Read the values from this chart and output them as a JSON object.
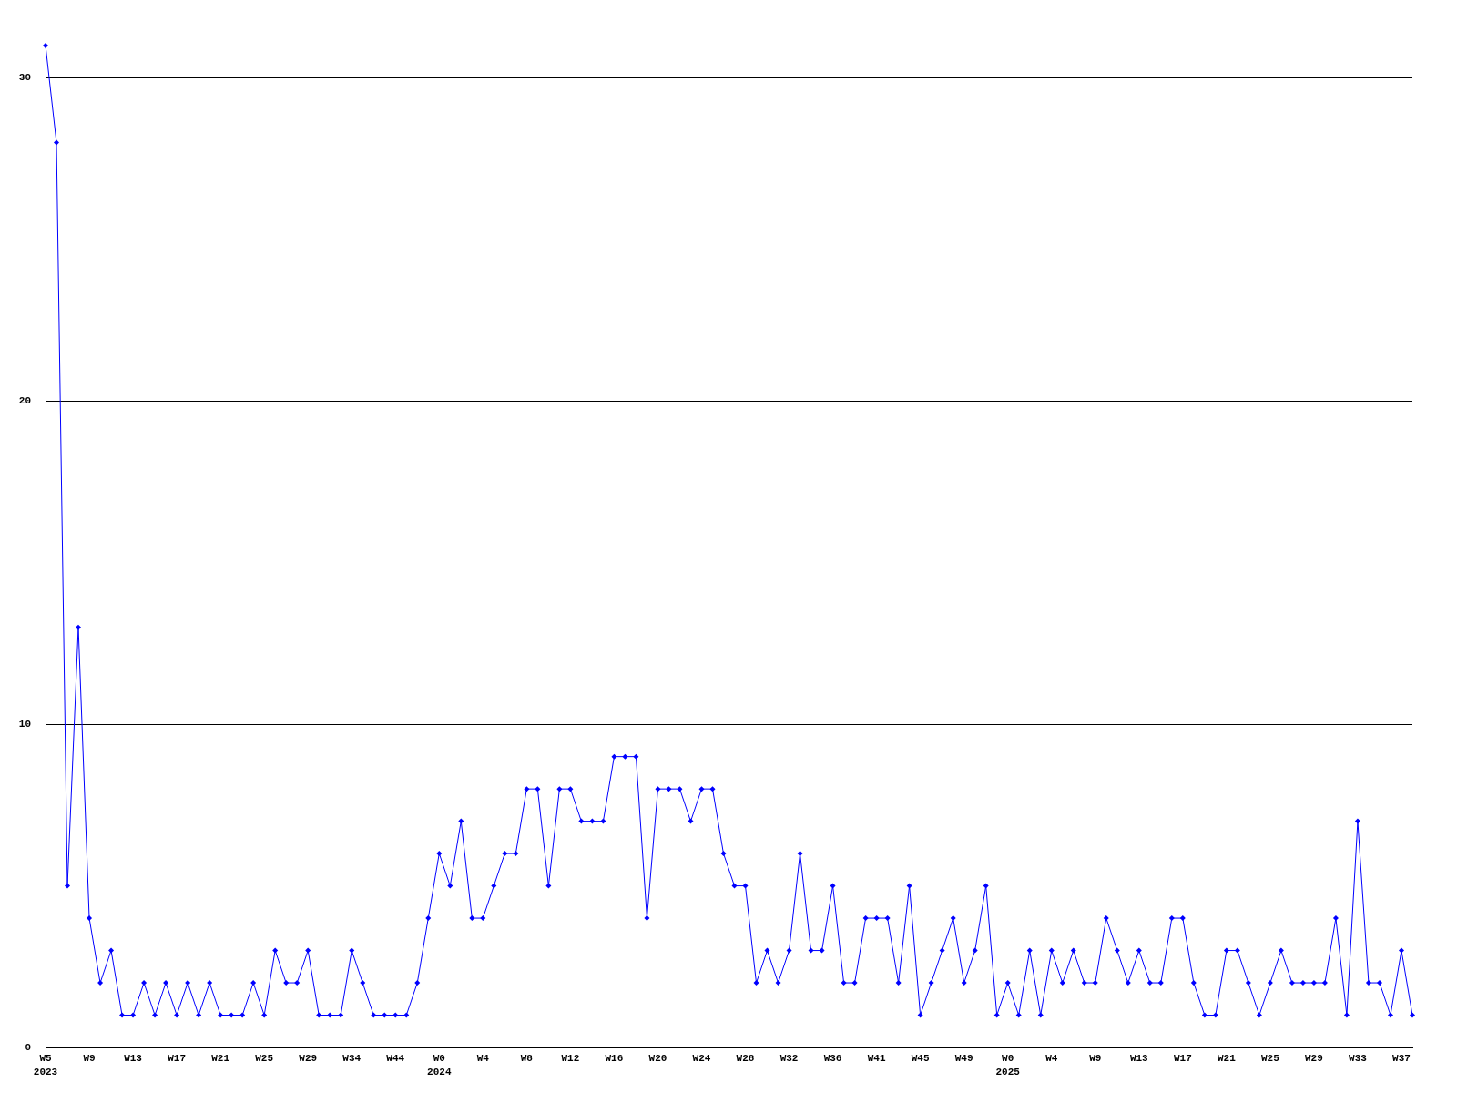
{
  "chart_data": {
    "type": "line",
    "categories": [
      "W5\n2023",
      null,
      null,
      null,
      "W9",
      null,
      null,
      null,
      "W13",
      null,
      null,
      null,
      "W17",
      null,
      null,
      null,
      "W21",
      null,
      null,
      null,
      "W25",
      null,
      null,
      null,
      "W29",
      null,
      null,
      null,
      "W34",
      null,
      null,
      null,
      "W44",
      null,
      null,
      null,
      "W0\n2024",
      null,
      null,
      null,
      "W4",
      null,
      null,
      null,
      "W8",
      null,
      null,
      null,
      "W12",
      null,
      null,
      null,
      "W16",
      null,
      null,
      null,
      "W20",
      null,
      null,
      null,
      "W24",
      null,
      null,
      null,
      "W28",
      null,
      null,
      null,
      "W32",
      null,
      null,
      null,
      "W36",
      null,
      null,
      null,
      "W41",
      null,
      null,
      null,
      "W45",
      null,
      null,
      null,
      "W49",
      null,
      null,
      null,
      "W0\n2025",
      null,
      null,
      null,
      "W4",
      null,
      null,
      null,
      "W9",
      null,
      null,
      null,
      "W13",
      null,
      null,
      null,
      "W17",
      null,
      null,
      null,
      "W21",
      null,
      null,
      null,
      "W25",
      null,
      null,
      null,
      "W29",
      null,
      null,
      null,
      "W33",
      null,
      null,
      null,
      "W37",
      null
    ],
    "values": [
      31,
      28,
      5,
      13,
      4,
      2,
      3,
      1,
      1,
      2,
      1,
      2,
      1,
      2,
      1,
      2,
      1,
      1,
      1,
      2,
      1,
      3,
      2,
      2,
      3,
      1,
      1,
      1,
      3,
      2,
      1,
      1,
      1,
      1,
      2,
      4,
      6,
      5,
      7,
      4,
      4,
      5,
      6,
      6,
      8,
      8,
      5,
      8,
      8,
      7,
      7,
      7,
      9,
      9,
      9,
      4,
      8,
      8,
      8,
      7,
      8,
      8,
      6,
      5,
      5,
      2,
      3,
      2,
      3,
      6,
      3,
      3,
      5,
      2,
      2,
      4,
      4,
      4,
      2,
      5,
      1,
      2,
      3,
      4,
      2,
      3,
      5,
      1,
      2,
      1,
      3,
      1,
      3,
      2,
      3,
      2,
      2,
      4,
      3,
      2,
      3,
      2,
      2,
      4,
      4,
      2,
      1,
      1,
      3,
      3,
      2,
      1,
      2,
      3,
      2,
      2,
      2,
      2,
      4,
      1,
      7,
      2,
      2,
      1,
      3,
      1
    ],
    "color": "#0000ff",
    "ylim": [
      0,
      31
    ],
    "yticks": [
      0,
      10,
      20,
      30
    ],
    "grid": "y",
    "marker": "diamond",
    "line_style": "solid"
  }
}
